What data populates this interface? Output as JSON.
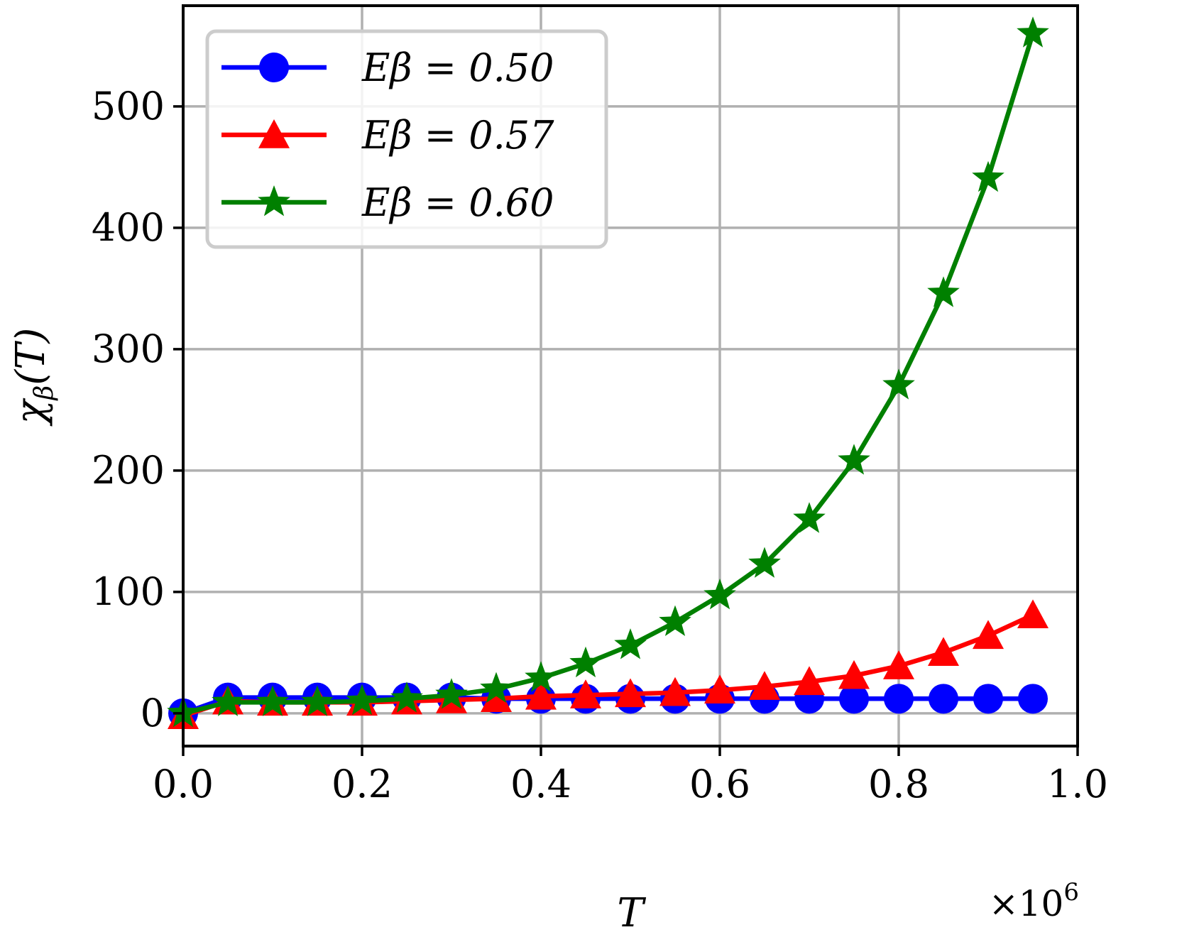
{
  "chart_data": {
    "type": "line",
    "xlabel": "T",
    "ylabel": "χ_β(T)",
    "x_multiplier": "×10^6",
    "x_multiplier_base": "×10",
    "x_multiplier_exp": "6",
    "ylabel_main": "χ",
    "ylabel_sub": "β",
    "ylabel_paren": "(T)",
    "xlim": [
      0.0,
      1.0
    ],
    "ylim": [
      -27,
      583
    ],
    "xticks": [
      0.0,
      0.2,
      0.4,
      0.6,
      0.8,
      1.0
    ],
    "xtick_labels": [
      "0.0",
      "0.2",
      "0.4",
      "0.6",
      "0.8",
      "1.0"
    ],
    "yticks": [
      0,
      100,
      200,
      300,
      400,
      500
    ],
    "ytick_labels": [
      "0",
      "100",
      "200",
      "300",
      "400",
      "500"
    ],
    "grid": true,
    "legend_position": "top-left",
    "x": [
      0.0,
      0.05,
      0.1,
      0.15,
      0.2,
      0.25,
      0.3,
      0.35,
      0.4,
      0.45,
      0.5,
      0.55,
      0.6,
      0.65,
      0.7,
      0.75,
      0.8,
      0.85,
      0.9,
      0.95
    ],
    "series": [
      {
        "name": "Eβ = 0.50",
        "color": "#0000ff",
        "marker": "circle",
        "values": [
          0,
          13,
          13,
          13,
          13,
          13,
          13,
          12,
          12,
          12,
          12,
          12,
          12,
          12,
          12,
          12,
          12,
          12,
          12,
          12
        ]
      },
      {
        "name": "Eβ = 0.57",
        "color": "#ff0000",
        "marker": "triangle",
        "values": [
          -2,
          10,
          9,
          9,
          9,
          10,
          11,
          12,
          14,
          15,
          16,
          17,
          19,
          22,
          26,
          31,
          39,
          50,
          64,
          81
        ]
      },
      {
        "name": "Eβ = 0.60",
        "color": "#008000",
        "marker": "star",
        "values": [
          0,
          9,
          9,
          9,
          10,
          12,
          15,
          20,
          29,
          41,
          56,
          75,
          97,
          123,
          160,
          208,
          270,
          346,
          441,
          560
        ]
      }
    ]
  }
}
